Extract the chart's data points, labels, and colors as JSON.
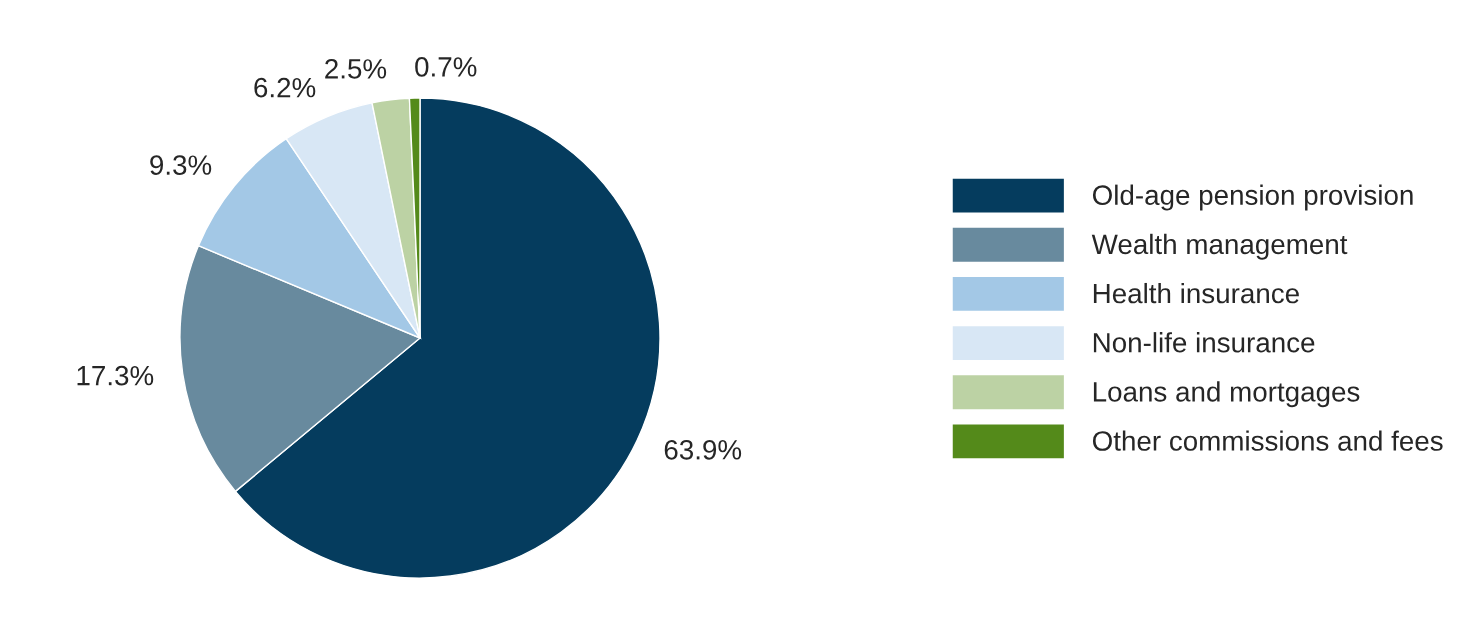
{
  "chart_data": {
    "type": "pie",
    "categories": [
      "Old-age pension provision",
      "Wealth management",
      "Health insurance",
      "Non-life insurance",
      "Loans and mortgages",
      "Other commissions and fees"
    ],
    "values": [
      63.9,
      17.3,
      9.3,
      6.2,
      2.5,
      0.7
    ],
    "colors": [
      "#053c5e",
      "#688a9e",
      "#a3c8e6",
      "#d8e7f5",
      "#bcd2a4",
      "#548a1a"
    ],
    "value_labels": [
      "63.9%",
      "17.3%",
      "9.3%",
      "6.2%",
      "2.5%",
      "0.7%"
    ],
    "legend": "right"
  }
}
